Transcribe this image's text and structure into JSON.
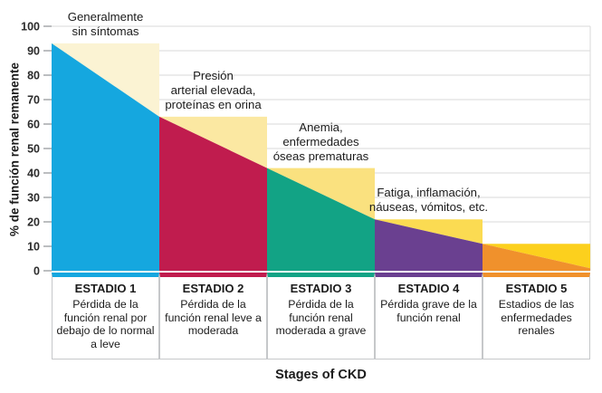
{
  "chart_data": {
    "type": "area",
    "title": "",
    "xlabel": "Stages of CKD",
    "ylabel": "% de función renal remanente",
    "ylim": [
      0,
      100
    ],
    "y_ticks": [
      0,
      10,
      20,
      30,
      40,
      50,
      60,
      70,
      80,
      90,
      100
    ],
    "grid": true,
    "legend": "none",
    "line_breakpoints_pct": [
      93,
      63,
      42,
      21,
      11,
      1
    ],
    "stages": [
      {
        "label": "ESTADIO 1",
        "description": "Pérdida de la función renal por debajo de lo normal a leve",
        "remaining_function_start_pct": 93,
        "remaining_function_end_pct": 63,
        "area_color": "#15A7DF",
        "band_color": "#FBF3D3",
        "annotation_lines": [
          "Generalmente",
          "sin síntomas"
        ]
      },
      {
        "label": "ESTADIO 2",
        "description": "Pérdida de la función renal leve a moderada",
        "remaining_function_start_pct": 63,
        "remaining_function_end_pct": 42,
        "area_color": "#C01C4E",
        "band_color": "#FBE8A2",
        "annotation_lines": [
          "Presión",
          "arterial elevada,",
          "proteínas en orina"
        ]
      },
      {
        "label": "ESTADIO 3",
        "description": "Pérdida de la función renal moderada a grave",
        "remaining_function_start_pct": 42,
        "remaining_function_end_pct": 21,
        "area_color": "#12A385",
        "band_color": "#FAE17F",
        "annotation_lines": [
          "Anemia,",
          "enfermedades",
          "óseas prematuras"
        ]
      },
      {
        "label": "ESTADIO 4",
        "description": "Pérdida grave de la función renal",
        "remaining_function_start_pct": 21,
        "remaining_function_end_pct": 11,
        "area_color": "#6A4090",
        "band_color": "#FBDB52",
        "annotation_lines": [
          "Fatiga, inflamación,",
          "náuseas, vómitos, etc."
        ]
      },
      {
        "label": "ESTADIO 5",
        "description": "Estadios de las enfermedades renales",
        "remaining_function_start_pct": 11,
        "remaining_function_end_pct": 1,
        "area_color": "#F0912C",
        "band_color": "#FCD01D",
        "annotation_lines": null
      }
    ]
  },
  "colors": {
    "grid": "#DADADA",
    "tick": "#A6A8AB",
    "plot_border": "#DADADA",
    "text": "#1B1B1B",
    "box_border": "#C6C8CA"
  }
}
